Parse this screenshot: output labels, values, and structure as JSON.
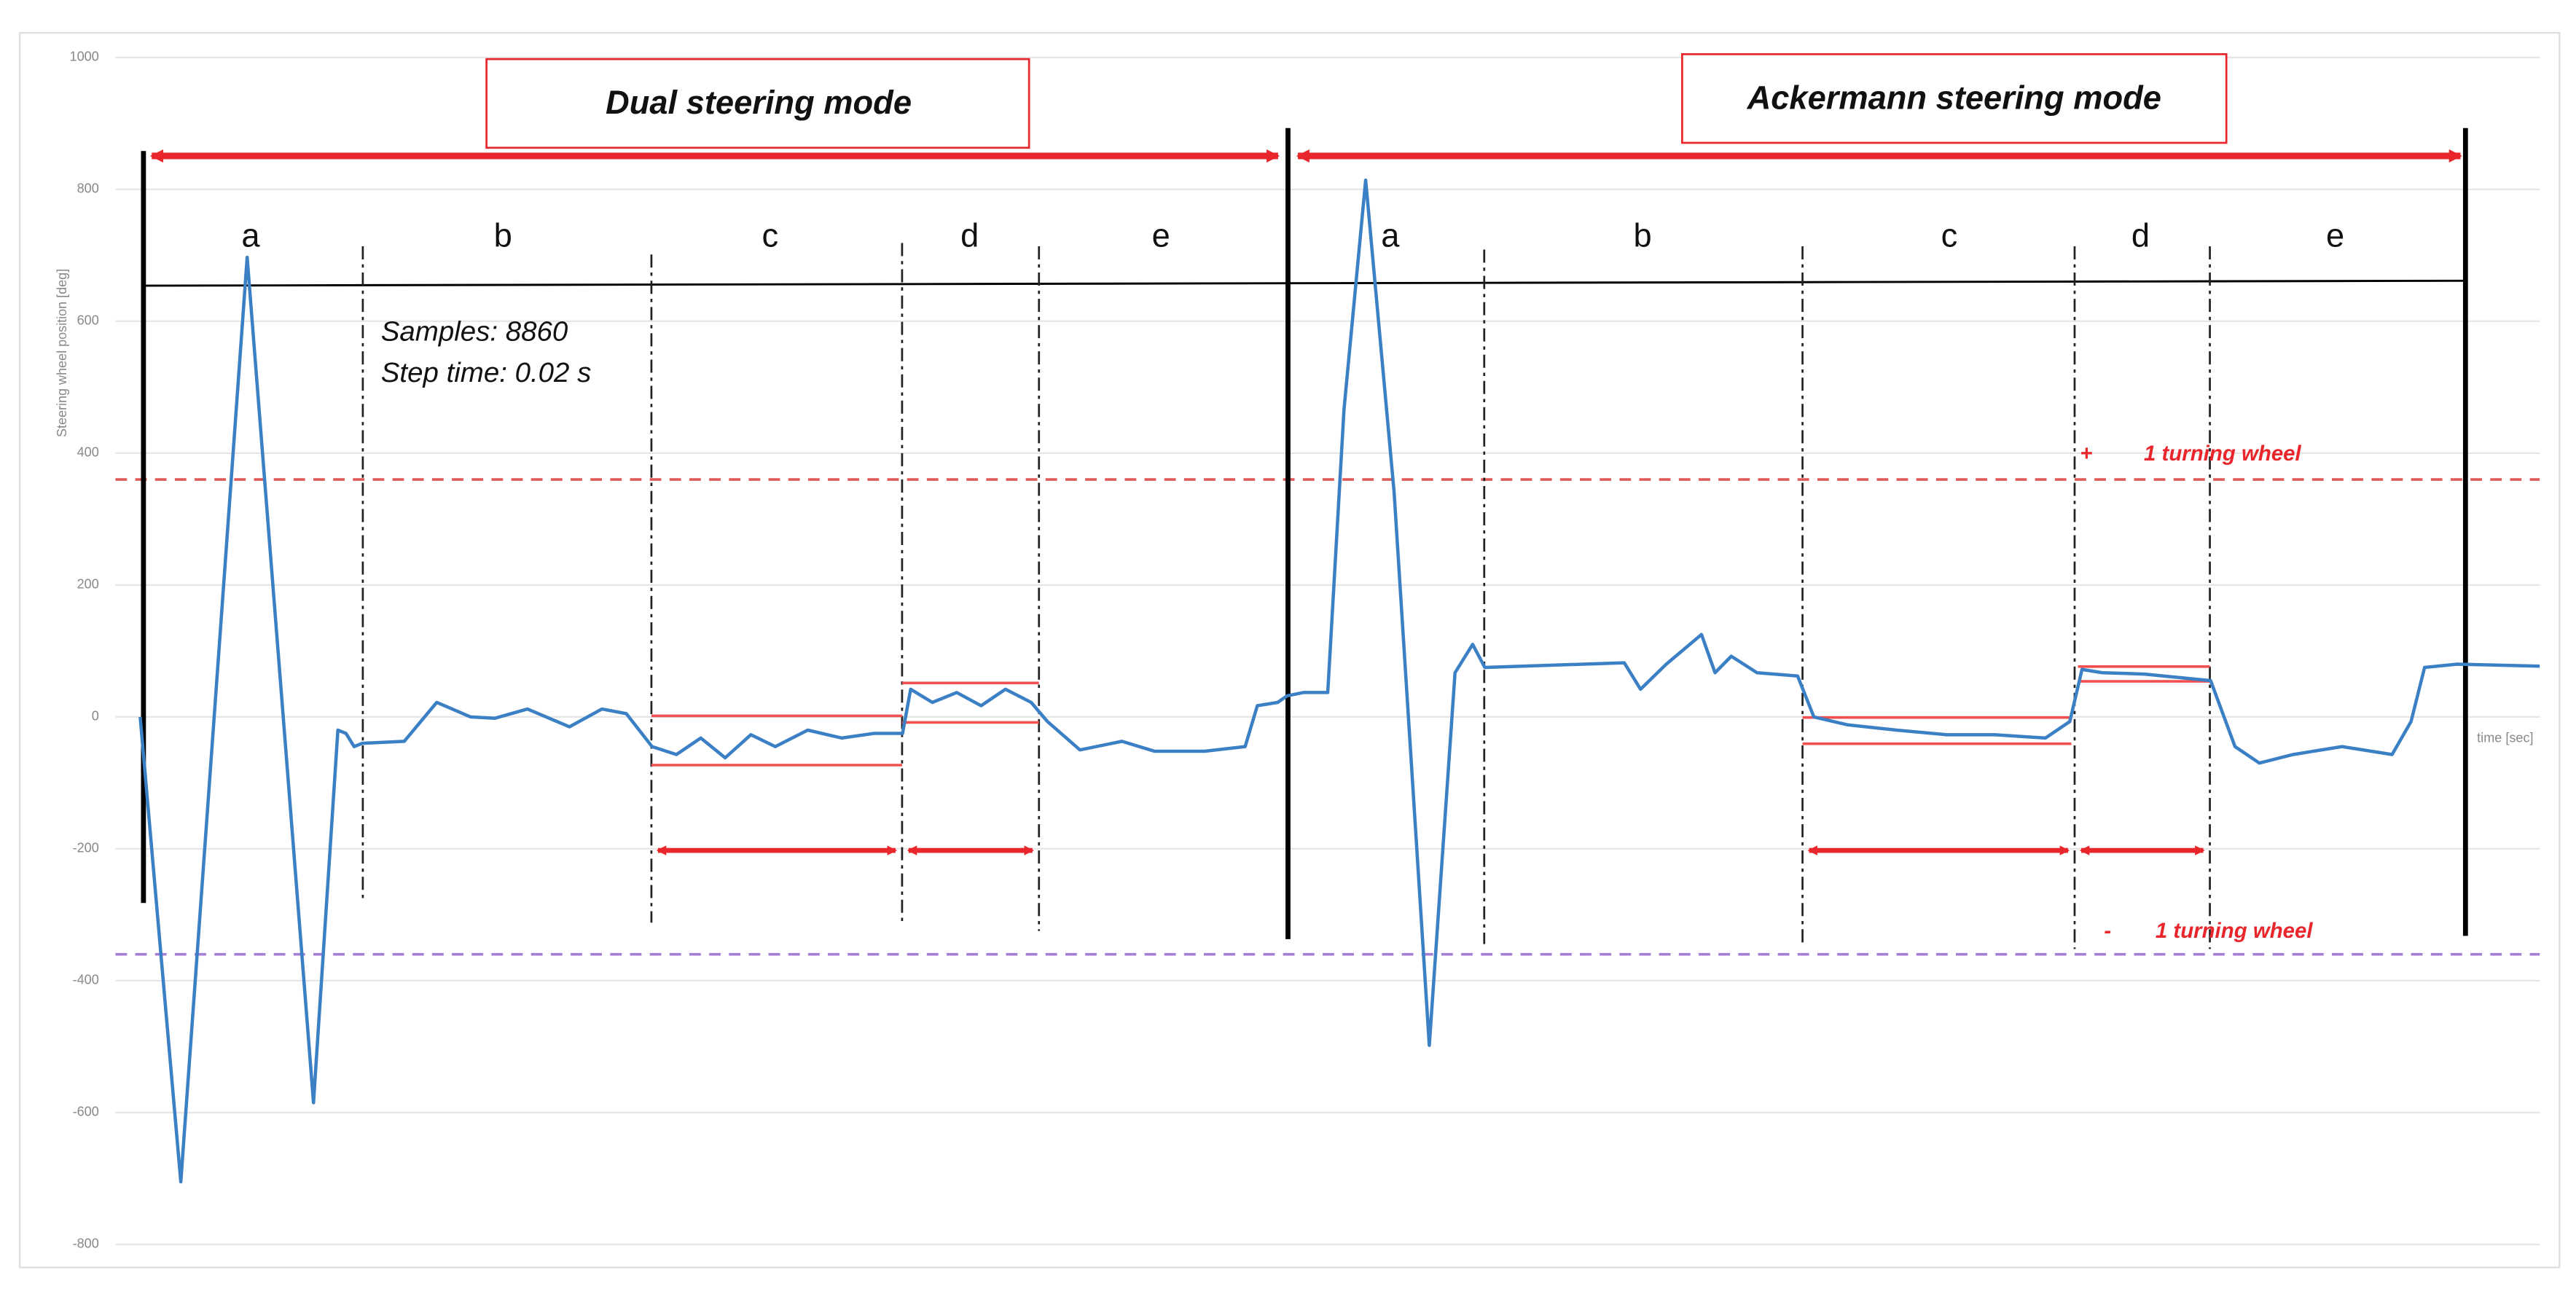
{
  "chart_data": {
    "type": "line",
    "ylabel": "Steering wheel position [deg]",
    "xlabel": "time [sec]",
    "ylim": [
      -800,
      1000
    ],
    "yticks": [
      -800,
      -600,
      -400,
      -200,
      0,
      200,
      400,
      600,
      800,
      1000
    ],
    "xlim": [
      0,
      177.2
    ],
    "grid": true,
    "color": "#3b7fc4",
    "x": [
      0,
      3.0,
      7.9,
      12.8,
      14.6,
      15.2,
      15.8,
      16.4,
      19.5,
      21.9,
      24.4,
      26.2,
      28.6,
      31.7,
      34.1,
      35.9,
      37.8,
      39.6,
      41.4,
      43.2,
      45.1,
      46.9,
      49.3,
      51.8,
      54.2,
      56.3,
      56.9,
      58.5,
      60.3,
      62.1,
      63.9,
      65.8,
      67.0,
      69.4,
      72.5,
      74.9,
      78.6,
      81.6,
      82.5,
      84.0,
      84.7,
      85.9,
      87.7,
      88.9,
      90.5,
      92.6,
      95.2,
      97.1,
      98.4,
      99.3,
      106.6,
      109.6,
      110.8,
      112.7,
      115.3,
      116.3,
      117.5,
      119.4,
      122.4,
      123.6,
      126.1,
      129.7,
      133.4,
      137.0,
      140.7,
      142.5,
      143.4,
      144.9,
      148.0,
      152.9,
      154.7,
      156.5,
      159.0,
      162.6,
      166.3,
      167.7,
      168.7,
      171.1,
      177.2
    ],
    "values": [
      0,
      -705,
      697,
      -585,
      -20,
      -25,
      -45,
      -40,
      -37,
      22,
      0,
      -2,
      12,
      -15,
      12,
      5,
      -45,
      -57,
      -32,
      -62,
      -27,
      -45,
      -20,
      -32,
      -25,
      -25,
      42,
      22,
      37,
      17,
      42,
      22,
      -7,
      -50,
      -37,
      -52,
      -52,
      -45,
      17,
      22,
      32,
      37,
      37,
      466,
      814,
      341,
      -498,
      67,
      110,
      75,
      80,
      82,
      42,
      80,
      125,
      67,
      92,
      67,
      62,
      0,
      -12,
      -20,
      -27,
      -27,
      -32,
      -7,
      72,
      67,
      65,
      55,
      -45,
      -70,
      -57,
      -45,
      -57,
      -7,
      75,
      80,
      77
    ],
    "annotations": {
      "modes": [
        "Dual steering mode",
        "Ackermann steering mode"
      ],
      "segments": [
        "a",
        "b",
        "c",
        "d",
        "e",
        "a",
        "b",
        "c",
        "d",
        "e"
      ],
      "samples": "Samples: 8860",
      "step": "Step time: 0.02 s"
    },
    "hlines": [
      {
        "value": 360,
        "color": "#e05a5a",
        "sign": "+",
        "label": "1 turning wheel"
      },
      {
        "value": -360,
        "color": "#a57fd6",
        "sign": "-",
        "label": "1 turning wheel"
      }
    ]
  }
}
